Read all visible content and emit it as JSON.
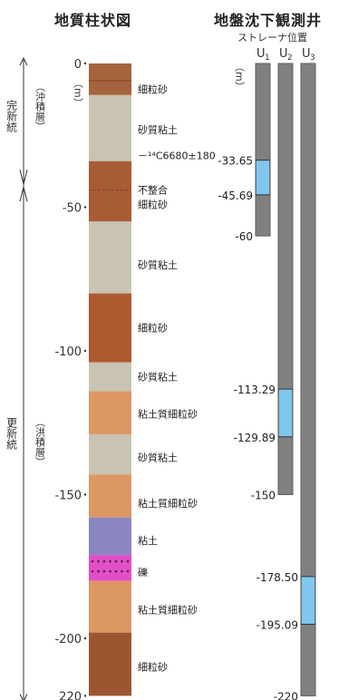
{
  "titles": {
    "column": "地質柱状図",
    "wells": "地盤沈下観測井"
  },
  "strainer_label": "ストレーナ位置",
  "unit": "（m）",
  "era_labels": {
    "holocene": "完新統",
    "holocene_sub": "（沖積層）",
    "pleistocene": "更新統",
    "pleistocene_sub": "（洪積層）"
  },
  "depth_ticks": [
    {
      "label": "0",
      "depth": 0
    },
    {
      "label": "-50",
      "depth": 50
    },
    {
      "label": "-100",
      "depth": 100
    },
    {
      "label": "-150",
      "depth": 150
    },
    {
      "label": "-200",
      "depth": 200
    },
    {
      "label": "220",
      "depth": 220
    }
  ],
  "layers": [
    {
      "top": 0,
      "bottom": 11,
      "color": "#a4643d",
      "label": "細粒砂",
      "label_depth": 9
    },
    {
      "top": 11,
      "bottom": 34,
      "color": "#c9c3b3",
      "label": "砂質粘土",
      "label_depth": 23
    },
    {
      "top": 34,
      "bottom": 55,
      "color": "#a75c35",
      "label": "細粒砂",
      "label_depth": 49
    },
    {
      "top": 55,
      "bottom": 80,
      "color": "#c9c3b3",
      "label": "砂質粘土",
      "label_depth": 70
    },
    {
      "top": 80,
      "bottom": 104,
      "color": "#ae5a31",
      "label": "細粒砂",
      "label_depth": 92
    },
    {
      "top": 104,
      "bottom": 114,
      "color": "#c9c3b3",
      "label": "砂質粘土",
      "label_depth": 109
    },
    {
      "top": 114,
      "bottom": 129,
      "color": "#dd9764",
      "label": "粘土質細粒砂",
      "label_depth": 122
    },
    {
      "top": 129,
      "bottom": 143,
      "color": "#c9c3b3",
      "label": "砂質粘土",
      "label_depth": 137
    },
    {
      "top": 143,
      "bottom": 158,
      "color": "#dd9764",
      "label": "粘土質細粒砂",
      "label_depth": 153
    },
    {
      "top": 158,
      "bottom": 171,
      "color": "#8a86c0",
      "label": "粘土",
      "label_depth": 166
    },
    {
      "top": 171,
      "bottom": 180,
      "color": "#e24fc6",
      "label": "礫",
      "label_depth": 177
    },
    {
      "top": 180,
      "bottom": 198,
      "color": "#dd9764",
      "label": "粘土質細粒砂",
      "label_depth": 190
    },
    {
      "top": 198,
      "bottom": 220,
      "color": "#9c5530",
      "label": "細粒砂",
      "label_depth": 210
    }
  ],
  "annotations": [
    {
      "text": "－¹⁴C6680±180",
      "depth": 32
    },
    {
      "text": "不整合",
      "depth": 44
    }
  ],
  "wells": [
    {
      "name": "U1",
      "name_main": "U",
      "name_sub": "1",
      "bottom": 60,
      "screen_top": 33.65,
      "screen_bottom": 45.69,
      "labels": [
        {
          "text": "-33.65",
          "depth": 33.65
        },
        {
          "text": "-45.69",
          "depth": 45.69
        },
        {
          "text": "-60",
          "depth": 60
        }
      ]
    },
    {
      "name": "U2",
      "name_main": "U",
      "name_sub": "2",
      "bottom": 150,
      "screen_top": 113.29,
      "screen_bottom": 129.89,
      "labels": [
        {
          "text": "-113.29",
          "depth": 113.29
        },
        {
          "text": "-129.89",
          "depth": 129.89
        },
        {
          "text": "-150",
          "depth": 150
        }
      ]
    },
    {
      "name": "U3",
      "name_main": "U",
      "name_sub": "3",
      "bottom": 220,
      "screen_top": 178.5,
      "screen_bottom": 195.09,
      "labels": [
        {
          "text": "-178.50",
          "depth": 178.5
        },
        {
          "text": "-195.09",
          "depth": 195.09
        },
        {
          "text": "-220",
          "depth": 220
        }
      ]
    }
  ],
  "colors": {
    "pipe": "#808080",
    "pipe_edge": "#5e5e5e",
    "screen": "#7ec8f0"
  }
}
